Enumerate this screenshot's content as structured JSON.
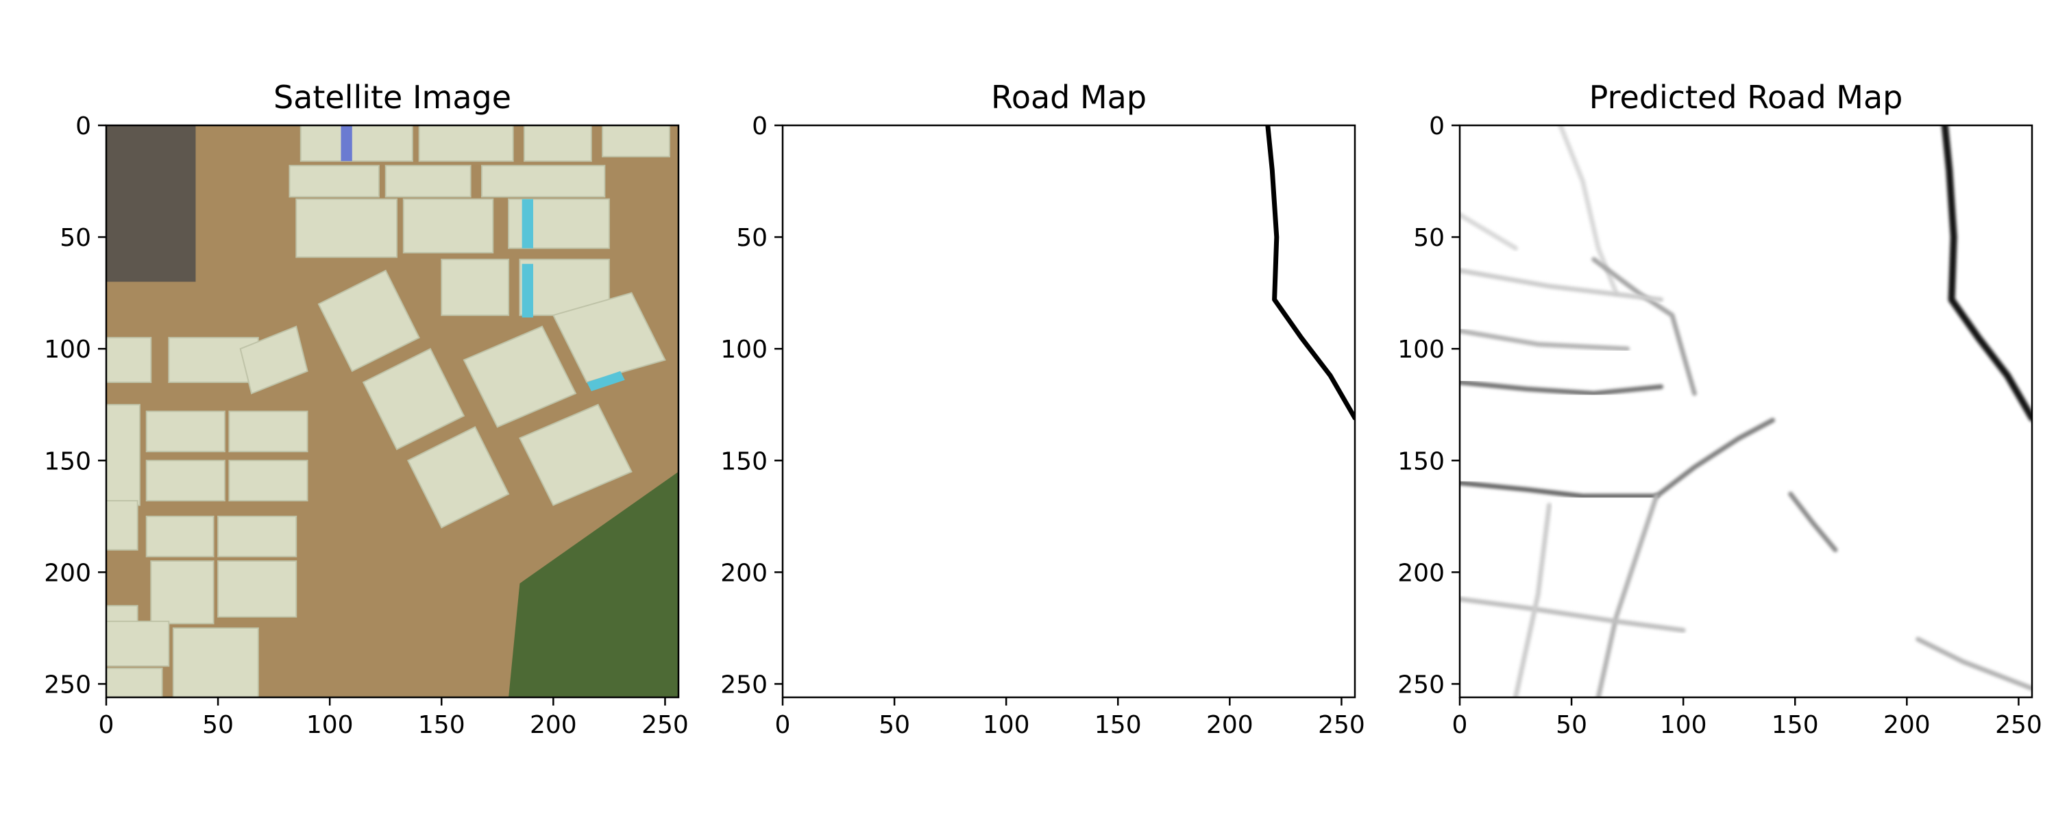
{
  "chart_data": [
    {
      "type": "image",
      "title": "Satellite Image",
      "xlim": [
        0,
        256
      ],
      "ylim": [
        256,
        0
      ],
      "xticks": [
        0,
        50,
        100,
        150,
        200,
        250
      ],
      "yticks": [
        0,
        50,
        100,
        150,
        200,
        250
      ],
      "content": "satellite",
      "colors": {
        "ground": "#a88a5e",
        "greenhouse": "#d9dcc3",
        "roofs": "#5e574e",
        "vegetation": "#4d6a35",
        "blue_roof": "#6b7bd1",
        "cyan_roof": "#58c4d8"
      }
    },
    {
      "type": "image",
      "title": "Road Map",
      "xlim": [
        0,
        256
      ],
      "ylim": [
        256,
        0
      ],
      "xticks": [
        0,
        50,
        100,
        150,
        200,
        250
      ],
      "yticks": [
        0,
        50,
        100,
        150,
        200,
        250
      ],
      "content": "mask",
      "colormap": "gray",
      "roads": [
        {
          "points": [
            [
              217,
              0
            ],
            [
              219,
              20
            ],
            [
              221,
              50
            ],
            [
              220,
              78
            ],
            [
              232,
              95
            ],
            [
              245,
              112
            ],
            [
              256,
              131
            ]
          ],
          "strength": 1.0
        }
      ]
    },
    {
      "type": "image",
      "title": "Predicted Road Map",
      "xlim": [
        0,
        256
      ],
      "ylim": [
        256,
        0
      ],
      "xticks": [
        0,
        50,
        100,
        150,
        200,
        250
      ],
      "yticks": [
        0,
        50,
        100,
        150,
        200,
        250
      ],
      "content": "prediction",
      "colormap": "gray",
      "roads": [
        {
          "points": [
            [
              217,
              0
            ],
            [
              219,
              20
            ],
            [
              221,
              50
            ],
            [
              220,
              78
            ],
            [
              232,
              95
            ],
            [
              245,
              112
            ],
            [
              256,
              131
            ]
          ],
          "strength": 0.9
        },
        {
          "points": [
            [
              0,
              115
            ],
            [
              30,
              118
            ],
            [
              60,
              120
            ],
            [
              90,
              117
            ]
          ],
          "strength": 0.55
        },
        {
          "points": [
            [
              0,
              160
            ],
            [
              30,
              163
            ],
            [
              55,
              166
            ],
            [
              88,
              166
            ]
          ],
          "strength": 0.6
        },
        {
          "points": [
            [
              88,
              166
            ],
            [
              105,
              153
            ],
            [
              125,
              140
            ],
            [
              140,
              132
            ]
          ],
          "strength": 0.5
        },
        {
          "points": [
            [
              88,
              166
            ],
            [
              80,
              190
            ],
            [
              70,
              220
            ],
            [
              62,
              256
            ]
          ],
          "strength": 0.3
        },
        {
          "points": [
            [
              0,
              212
            ],
            [
              30,
              216
            ],
            [
              70,
              222
            ],
            [
              100,
              226
            ]
          ],
          "strength": 0.25
        },
        {
          "points": [
            [
              45,
              0
            ],
            [
              55,
              25
            ],
            [
              62,
              55
            ],
            [
              70,
              75
            ]
          ],
          "strength": 0.15
        },
        {
          "points": [
            [
              0,
              92
            ],
            [
              35,
              98
            ],
            [
              75,
              100
            ]
          ],
          "strength": 0.3
        },
        {
          "points": [
            [
              60,
              60
            ],
            [
              80,
              75
            ],
            [
              95,
              85
            ],
            [
              105,
              120
            ]
          ],
          "strength": 0.35
        },
        {
          "points": [
            [
              148,
              165
            ],
            [
              158,
              178
            ],
            [
              168,
              190
            ]
          ],
          "strength": 0.45
        },
        {
          "points": [
            [
              0,
              65
            ],
            [
              40,
              72
            ],
            [
              90,
              78
            ]
          ],
          "strength": 0.2
        },
        {
          "points": [
            [
              40,
              170
            ],
            [
              35,
              210
            ],
            [
              25,
              256
            ]
          ],
          "strength": 0.2
        },
        {
          "points": [
            [
              205,
              230
            ],
            [
              225,
              240
            ],
            [
              256,
              252
            ]
          ],
          "strength": 0.3
        },
        {
          "points": [
            [
              0,
              40
            ],
            [
              25,
              55
            ]
          ],
          "strength": 0.15
        }
      ]
    }
  ]
}
